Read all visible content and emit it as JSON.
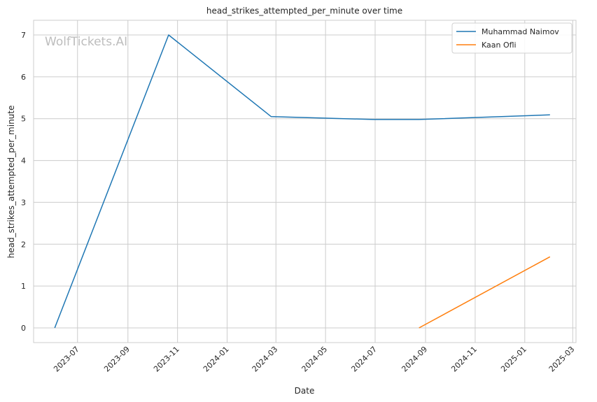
{
  "chart_data": {
    "type": "line",
    "title": "head_strikes_attempted_per_minute over time",
    "xlabel": "Date",
    "ylabel": "head_strikes_attempted_per_minute",
    "watermark": "WolfTickets.AI",
    "xlim": [
      "2023-05-08",
      "2025-03-05"
    ],
    "ylim": [
      -0.35,
      7.35
    ],
    "x_ticks": [
      "2023-07",
      "2023-09",
      "2023-11",
      "2024-01",
      "2024-03",
      "2024-05",
      "2024-07",
      "2024-09",
      "2024-11",
      "2025-01",
      "2025-03"
    ],
    "y_ticks": [
      0,
      1,
      2,
      3,
      4,
      5,
      6,
      7
    ],
    "grid": true,
    "legend_position": "top-right",
    "series": [
      {
        "name": "Muhammad Naimov",
        "color": "#1f77b4",
        "x": [
          "2023-06-03",
          "2023-10-21",
          "2024-02-24",
          "2024-06-29",
          "2024-08-24",
          "2025-02-01"
        ],
        "y": [
          0,
          7.0,
          5.05,
          4.98,
          4.98,
          5.09
        ]
      },
      {
        "name": "Kaan Ofli",
        "color": "#ff7f0e",
        "x": [
          "2024-08-24",
          "2025-02-01"
        ],
        "y": [
          0,
          1.7
        ]
      }
    ]
  }
}
